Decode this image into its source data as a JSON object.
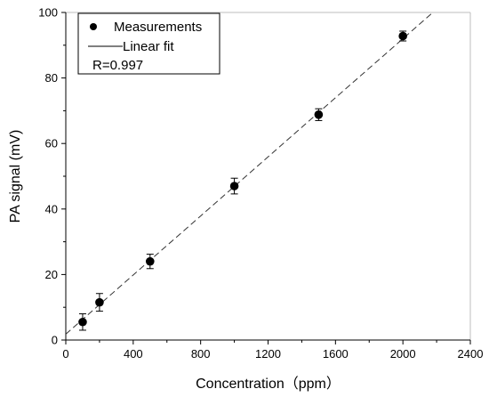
{
  "chart_data": {
    "type": "scatter",
    "xlabel": "Concentration（ppm）",
    "ylabel": "PA signal (mV)",
    "xlim": [
      0,
      2400
    ],
    "ylim": [
      0,
      100
    ],
    "xticks": [
      0,
      400,
      800,
      1200,
      1600,
      2000,
      2400
    ],
    "yticks": [
      0,
      20,
      40,
      60,
      80,
      100
    ],
    "grid": false,
    "legend_position": "top-left",
    "series": [
      {
        "name": "Measurements",
        "kind": "points-with-error-bars",
        "x": [
          100,
          200,
          500,
          1000,
          1500,
          2000
        ],
        "y": [
          5.5,
          11.5,
          24,
          47,
          68.8,
          92.8
        ],
        "error": [
          2.5,
          2.7,
          2.2,
          2.4,
          1.8,
          1.5
        ]
      },
      {
        "name": "Linear fit",
        "kind": "line",
        "slope": 0.0451,
        "intercept": 1.8,
        "x_range": [
          0,
          2180
        ]
      }
    ],
    "annotations": [
      "R=0.997"
    ]
  }
}
